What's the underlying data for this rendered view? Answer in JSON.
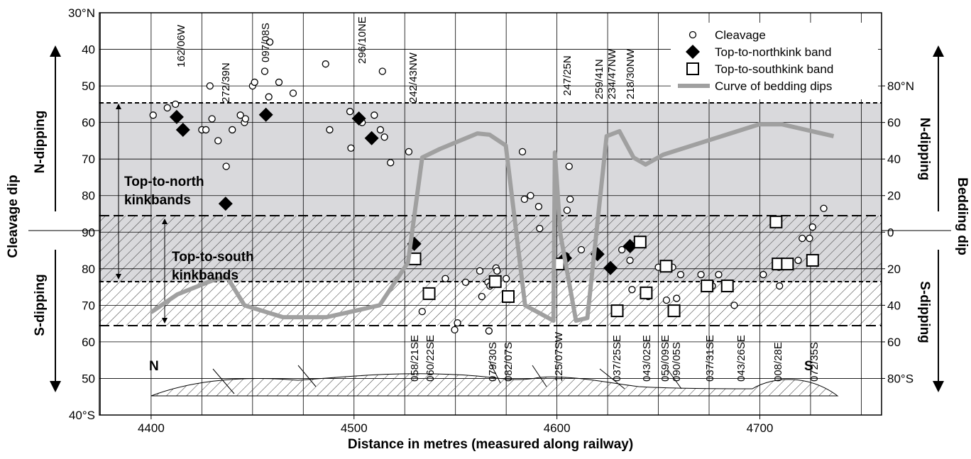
{
  "chart_data": {
    "type": "scatter",
    "xlabel": "Distance in metres (measured along railway)",
    "ylabel": "Cleavage dip",
    "y2label": "Bedding dip",
    "side_labels": {
      "left_n": "N-dipping",
      "left_s": "S-dipping",
      "right_n": "N-dipping",
      "right_s": "S-dipping"
    },
    "xlim": [
      4374.5,
      4760
    ],
    "xticks": [
      4400,
      4500,
      4600,
      4700
    ],
    "ylim": [
      30,
      140
    ],
    "yticks": [
      {
        "value": 30,
        "label": "30°N"
      },
      40,
      50,
      60,
      70,
      80,
      90,
      {
        "value": 100,
        "label": "80"
      },
      {
        "value": 110,
        "label": "70"
      },
      {
        "value": 120,
        "label": "60"
      },
      {
        "value": 130,
        "label": "50"
      },
      {
        "value": 140,
        "label": "40°S"
      }
    ],
    "y2lim": [
      -100,
      120
    ],
    "y2ticks": [
      {
        "value": 80,
        "label": "80°N"
      },
      60,
      40,
      20,
      0,
      {
        "value": -20,
        "label": "20"
      },
      {
        "value": -40,
        "label": "40"
      },
      {
        "value": -60,
        "label": "60"
      },
      {
        "value": -80,
        "label": "80°S"
      }
    ],
    "grid": true,
    "band_labels": [
      "Top-to-north\nkinkbands",
      "Top-to-south\nkinkbands"
    ],
    "section_labels": [
      "N",
      "S"
    ],
    "top_annotations": [
      "162/06W",
      "272/39N",
      "097/08S",
      "296/10NE",
      "242/43NW",
      "247/25N",
      "259/41N",
      "234/47NW",
      "218/30NW"
    ],
    "bottom_annotations": [
      "058/21SE",
      "060/22SE",
      "079/30S",
      "082/07S",
      "125/07SW",
      "037/25SE",
      "043/02SE",
      "059/09SE",
      "090/05S",
      "037/31SE",
      "043/26SE",
      "008/28E",
      "072/35S"
    ],
    "legend_position": "upper right",
    "series": [
      {
        "name": "Cleavage",
        "marker": "circle",
        "color": "#000000",
        "x": [
          4401,
          4408,
          4412,
          4425,
          4427,
          4429,
          4430,
          4433,
          4437,
          4440,
          4444,
          4446,
          4446.5,
          4450,
          4451,
          4456,
          4458,
          4458.5,
          4463,
          4470,
          4486,
          4488,
          4498,
          4498.5,
          4504,
          4510,
          4513,
          4515,
          4514,
          4518,
          4527,
          4583,
          4584,
          4587,
          4591,
          4591.5,
          4606,
          4606.5,
          4605,
          4533.6,
          4545,
          4549.6,
          4551,
          4555,
          4562,
          4566,
          4566.5,
          4567,
          4570,
          4570.5,
          4575,
          4563,
          4604.5,
          4612,
          4632,
          4636,
          4637,
          4645,
          4650,
          4654,
          4657,
          4659,
          4661,
          4671,
          4676.6,
          4679.7,
          4687.4,
          4701.7,
          4709.4,
          4709.7,
          4718.9,
          4720.9,
          4724.5,
          4726,
          4731.5
        ],
        "values": [
          58,
          56,
          55,
          62,
          62,
          50,
          59,
          65,
          72,
          62,
          58,
          60,
          59,
          50,
          49,
          46,
          53,
          38,
          49,
          52,
          44,
          62,
          57,
          67,
          60,
          58,
          62,
          64,
          46,
          71,
          68,
          68,
          81,
          80,
          83,
          89,
          72,
          81,
          84,
          111.7,
          102.7,
          116.7,
          114.8,
          103.7,
          100.6,
          103.7,
          117,
          104.7,
          99.8,
          100.6,
          102.7,
          107.6,
          96.5,
          94.8,
          94.8,
          97.7,
          105.7,
          107.6,
          99.6,
          108.6,
          99.6,
          108.1,
          101.6,
          101.6,
          104.7,
          101.6,
          110,
          101.6,
          99.6,
          104.7,
          97.7,
          91.7,
          91.7,
          88.6,
          83.5
        ]
      },
      {
        "name": "Top-to-northkink band",
        "marker": "diamond",
        "color": "#000000",
        "x": [
          4412.6,
          4415.7,
          4456.6,
          4502.4,
          4508.7,
          4436.7,
          4529.7,
          4604,
          4620,
          4626.4,
          4636
        ],
        "values": [
          58.5,
          62,
          57.9,
          58.9,
          64.3,
          82.2,
          93.2,
          97.1,
          96,
          99.8,
          93.8
        ]
      },
      {
        "name": "Top-to-southkink band",
        "marker": "square",
        "color": "#000000",
        "x": [
          4530,
          4537,
          4576,
          4569.6,
          4600.7,
          4629.7,
          4641,
          4644,
          4653.8,
          4657.7,
          4684,
          4674,
          4708,
          4709,
          4713.6,
          4726
        ],
        "values": [
          97.3,
          106.8,
          107.6,
          103.5,
          98.7,
          111.5,
          92.7,
          106.6,
          99.3,
          111.5,
          104.7,
          104.7,
          87.2,
          98.7,
          98.7,
          97.7
        ]
      },
      {
        "name": "Curve of bedding dips",
        "marker": "line",
        "color": "#a0a0a0",
        "axis": "y2",
        "x": [
          4400,
          4413,
          4430.4,
          4437.4,
          4446,
          4465,
          4486.4,
          4512.6,
          4526.6,
          4533.6,
          4542.3,
          4560.8,
          4566.8,
          4574.8,
          4584.3,
          4598.3,
          4599,
          4601.7,
          4609.4,
          4615,
          4624.5,
          4630.8,
          4637.8,
          4643.7,
          4652.4,
          4699.7,
          4710.8,
          4736.4
        ],
        "values": [
          -43.8,
          -34,
          -26.3,
          -24.4,
          -40,
          -46.5,
          -46.5,
          -40,
          -16.6,
          40.8,
          45.5,
          54,
          53.3,
          47.4,
          -40,
          -48.4,
          43.6,
          -1,
          -48.4,
          -46.9,
          52.5,
          55.2,
          40.8,
          37,
          42.4,
          59,
          59,
          52.5
        ]
      }
    ]
  }
}
